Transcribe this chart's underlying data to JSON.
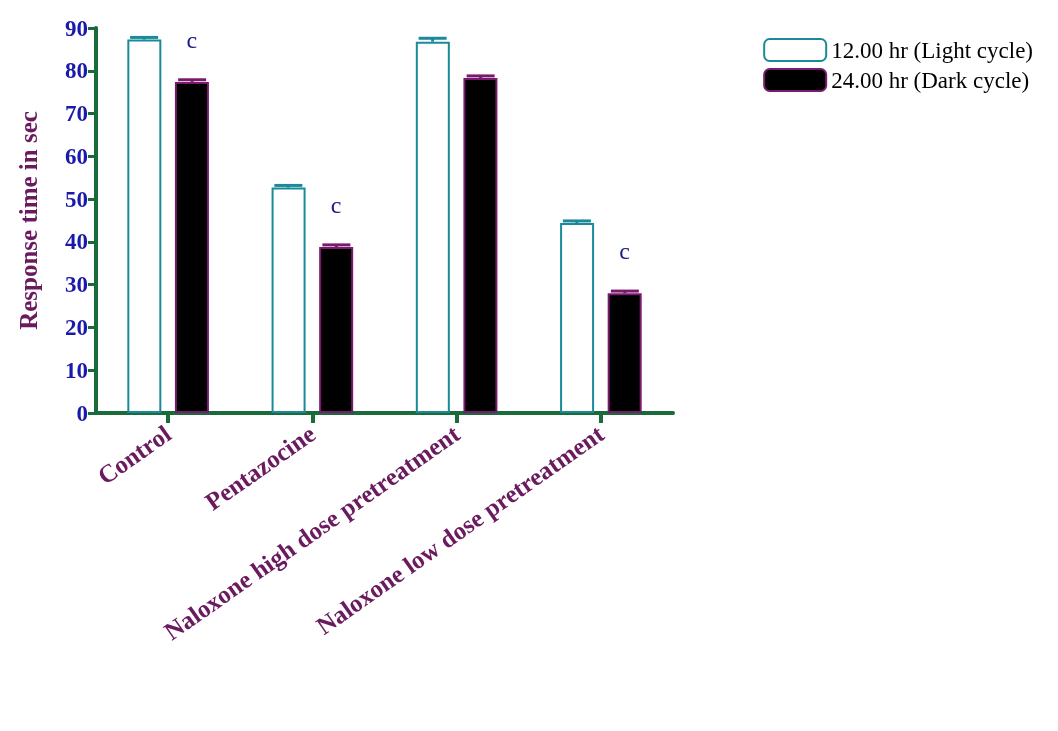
{
  "chart_data": {
    "type": "bar",
    "ylabel": "Response time in sec",
    "categories": [
      "Control",
      "Pentazocine",
      "Naloxone high dose pretreatment",
      "Naloxone low dose pretreatment"
    ],
    "series": [
      {
        "name": "12.00 hr (Light cycle)",
        "color": "#1a8a9a",
        "values": [
          87.3,
          52.7,
          86.8,
          44.4
        ],
        "errors": [
          0.5,
          0.5,
          0.8,
          0.5
        ]
      },
      {
        "name": "24.00 hr (Dark cycle)",
        "color": "#7a1a6e",
        "values": [
          77.4,
          38.8,
          78.3,
          28.0
        ],
        "value_labels": [
          "c",
          "c",
          null,
          "c"
        ],
        "errors": [
          0.5,
          0.5,
          0.5,
          0.5
        ]
      }
    ],
    "ylim": [
      0,
      90
    ],
    "yticks": [
      0,
      10,
      20,
      30,
      40,
      50,
      60,
      70,
      80,
      90
    ],
    "grid": false,
    "legend": "top right"
  }
}
